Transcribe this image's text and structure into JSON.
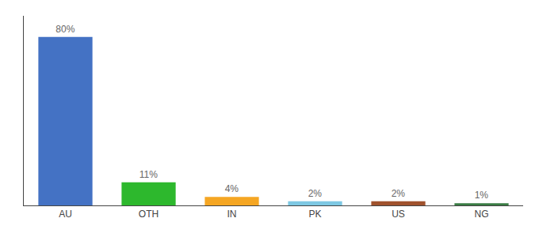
{
  "chart_data": {
    "type": "bar",
    "categories": [
      "AU",
      "OTH",
      "IN",
      "PK",
      "US",
      "NG"
    ],
    "values": [
      80,
      11,
      4,
      2,
      2,
      1
    ],
    "value_labels": [
      "80%",
      "11%",
      "4%",
      "2%",
      "2%",
      "1%"
    ],
    "colors": [
      "#4472c4",
      "#2db82d",
      "#f5a623",
      "#7ec8e3",
      "#a0522d",
      "#3a7d44"
    ],
    "ylim": [
      0,
      90
    ],
    "grid": false,
    "data_labels": true,
    "tick_labels": "x"
  }
}
